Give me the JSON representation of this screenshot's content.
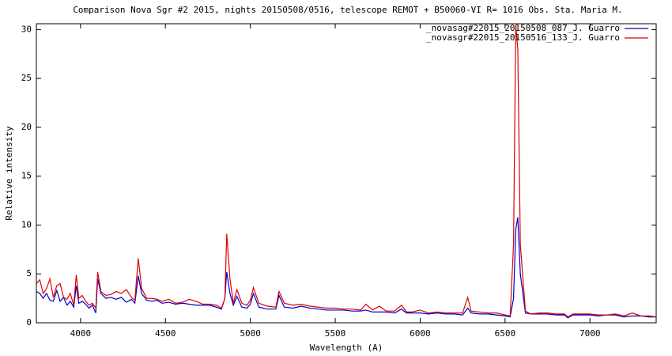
{
  "chart_data": {
    "type": "line",
    "title": "Comparison Nova Sgr #2 2015, nights 20150508/0516, telescope REMOT + B50060-VI  R= 1016   Obs. Sta. Maria  M.",
    "x_label": "Wavelength (A)",
    "y_label": "Relative intensity",
    "legend": "top right",
    "x": [
      3740,
      3760,
      3780,
      3800,
      3820,
      3840,
      3860,
      3880,
      3900,
      3920,
      3940,
      3960,
      3975,
      3990,
      4010,
      4030,
      4050,
      4070,
      4090,
      4101,
      4120,
      4150,
      4180,
      4210,
      4240,
      4270,
      4300,
      4320,
      4340,
      4360,
      4390,
      4420,
      4450,
      4480,
      4520,
      4560,
      4600,
      4640,
      4680,
      4720,
      4760,
      4800,
      4830,
      4850,
      4861,
      4880,
      4900,
      4921,
      4950,
      4980,
      5000,
      5018,
      5050,
      5100,
      5150,
      5169,
      5200,
      5250,
      5300,
      5350,
      5400,
      5450,
      5500,
      5550,
      5600,
      5650,
      5680,
      5720,
      5760,
      5800,
      5850,
      5890,
      5920,
      5950,
      6000,
      6050,
      6100,
      6150,
      6200,
      6250,
      6280,
      6300,
      6350,
      6400,
      6450,
      6500,
      6530,
      6550,
      6563,
      6575,
      6590,
      6620,
      6650,
      6700,
      6750,
      6800,
      6850,
      6870,
      6900,
      6950,
      7000,
      7050,
      7100,
      7150,
      7200,
      7250,
      7300,
      7350,
      7390
    ],
    "series": [
      {
        "name": "_novasag#22015_20150508_087_J. Guarro",
        "color": "#0000cc",
        "values": [
          3.2,
          3.0,
          2.5,
          3.0,
          2.3,
          2.2,
          3.3,
          2.2,
          2.6,
          1.8,
          2.2,
          1.6,
          3.8,
          2.0,
          2.2,
          1.9,
          1.5,
          1.8,
          1.0,
          4.5,
          3.0,
          2.5,
          2.6,
          2.4,
          2.6,
          2.1,
          2.4,
          2.0,
          4.8,
          3.0,
          2.3,
          2.2,
          2.3,
          2.0,
          2.1,
          1.9,
          2.0,
          1.9,
          1.8,
          1.8,
          1.8,
          1.6,
          1.4,
          2.5,
          5.2,
          3.0,
          1.8,
          2.7,
          1.6,
          1.5,
          1.9,
          3.0,
          1.6,
          1.4,
          1.4,
          2.8,
          1.6,
          1.5,
          1.7,
          1.5,
          1.4,
          1.3,
          1.3,
          1.3,
          1.2,
          1.2,
          1.3,
          1.1,
          1.1,
          1.1,
          1.0,
          1.4,
          1.0,
          1.0,
          1.0,
          0.9,
          1.0,
          0.9,
          0.9,
          0.8,
          1.5,
          1.0,
          0.9,
          0.9,
          0.8,
          0.7,
          0.6,
          2.5,
          9.5,
          10.8,
          5.0,
          1.0,
          0.9,
          0.9,
          0.9,
          0.8,
          0.8,
          0.5,
          0.8,
          0.8,
          0.8,
          0.7,
          0.8,
          0.8,
          0.6,
          0.7,
          0.7,
          0.6,
          0.6
        ]
      },
      {
        "name": "_novasgr#22015_20150516_133_J. Guarro",
        "color": "#dd0000",
        "values": [
          4.0,
          4.4,
          3.0,
          3.5,
          4.5,
          2.6,
          3.8,
          4.0,
          2.6,
          2.4,
          3.0,
          1.8,
          4.9,
          2.5,
          2.8,
          2.2,
          1.8,
          2.0,
          1.5,
          5.2,
          3.2,
          2.8,
          2.9,
          3.2,
          3.0,
          3.4,
          2.6,
          2.3,
          6.6,
          3.5,
          2.5,
          2.5,
          2.4,
          2.2,
          2.4,
          2.0,
          2.1,
          2.4,
          2.2,
          1.9,
          1.9,
          1.8,
          1.5,
          2.5,
          9.1,
          4.5,
          2.0,
          3.4,
          2.0,
          1.8,
          2.3,
          3.6,
          2.0,
          1.7,
          1.6,
          3.2,
          2.0,
          1.8,
          1.9,
          1.7,
          1.6,
          1.5,
          1.5,
          1.4,
          1.4,
          1.3,
          1.9,
          1.3,
          1.7,
          1.2,
          1.2,
          1.8,
          1.1,
          1.1,
          1.3,
          1.0,
          1.1,
          1.0,
          1.0,
          1.0,
          2.6,
          1.2,
          1.1,
          1.0,
          1.0,
          0.8,
          0.7,
          8.0,
          30.5,
          28.0,
          8.0,
          1.2,
          0.9,
          1.0,
          1.0,
          0.9,
          0.9,
          0.6,
          0.9,
          0.9,
          0.9,
          0.8,
          0.8,
          0.9,
          0.7,
          1.0,
          0.7,
          0.7,
          0.6
        ]
      }
    ],
    "xlim": [
      3740,
      7390
    ],
    "ylim": [
      0,
      30.6
    ],
    "xticks": [
      4000,
      4500,
      5000,
      5500,
      6000,
      6500,
      7000
    ],
    "yticks": [
      0,
      5,
      10,
      15,
      20,
      25,
      30
    ]
  }
}
